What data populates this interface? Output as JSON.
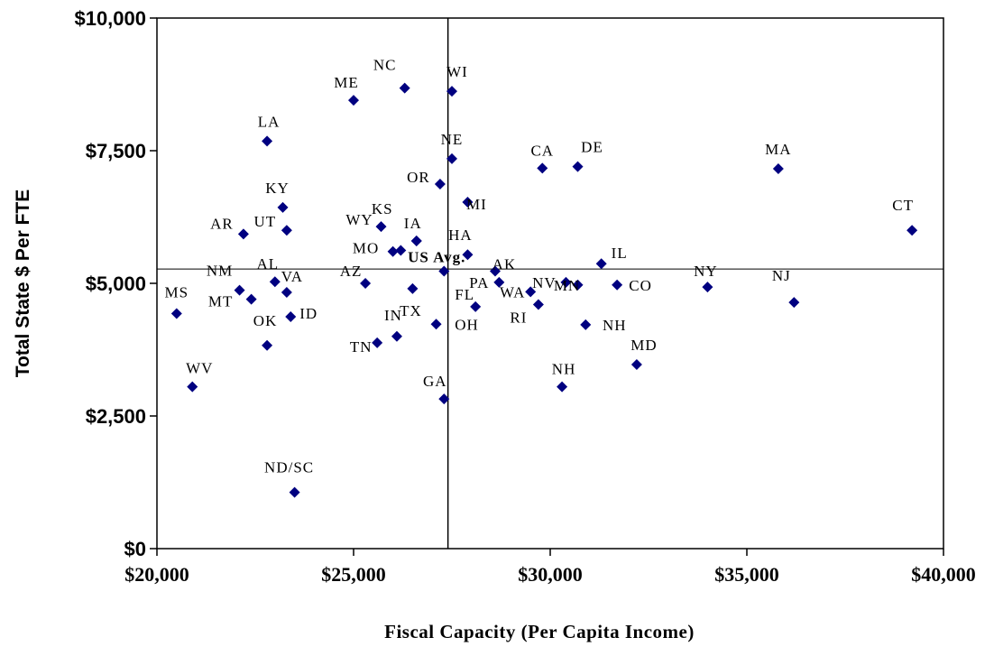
{
  "chart_data": {
    "type": "scatter",
    "xlabel": "Fiscal Capacity (Per Capita Income)",
    "ylabel": "Total State $ Per FTE",
    "xlim": [
      20000,
      40000
    ],
    "ylim": [
      0,
      10000
    ],
    "x_ticks": [
      20000,
      25000,
      30000,
      35000,
      40000
    ],
    "y_ticks": [
      0,
      2500,
      5000,
      7500,
      10000
    ],
    "x_tick_labels": [
      "$20,000",
      "$25,000",
      "$30,000",
      "$35,000",
      "$40,000"
    ],
    "y_tick_labels": [
      "$0",
      "$2,500",
      "$5,000",
      "$7,500",
      "$10,000"
    ],
    "reference_lines": {
      "x": 27400,
      "y": 5270
    },
    "marker_color": "#000080",
    "points": [
      {
        "label": "MS",
        "x": 20500,
        "y": 4430
      },
      {
        "label": "WV",
        "x": 20900,
        "y": 3050
      },
      {
        "label": "NM",
        "x": 22100,
        "y": 4870
      },
      {
        "label": "MT",
        "x": 22400,
        "y": 4700
      },
      {
        "label": "AR",
        "x": 22200,
        "y": 5930
      },
      {
        "label": "LA",
        "x": 22800,
        "y": 7680
      },
      {
        "label": "KY",
        "x": 23200,
        "y": 6430
      },
      {
        "label": "UT",
        "x": 23300,
        "y": 6000
      },
      {
        "label": "AL",
        "x": 23000,
        "y": 5030
      },
      {
        "label": "VA",
        "x": 23300,
        "y": 4830
      },
      {
        "label": "OK",
        "x": 22800,
        "y": 3830
      },
      {
        "label": "ID",
        "x": 23400,
        "y": 4370
      },
      {
        "label": "ND/SC",
        "x": 23500,
        "y": 1060
      },
      {
        "label": "ME",
        "x": 25000,
        "y": 8450
      },
      {
        "label": "AZ",
        "x": 25300,
        "y": 5000
      },
      {
        "label": "WY",
        "x": 25700,
        "y": 6070
      },
      {
        "label": "MO",
        "x": 26000,
        "y": 5600
      },
      {
        "label": "",
        "x": 26200,
        "y": 5620
      },
      {
        "label": "KS",
        "x": 26600,
        "y": 5800
      },
      {
        "label": "IA",
        "x": 26600,
        "y": 5800
      },
      {
        "label": "TN",
        "x": 25600,
        "y": 3880
      },
      {
        "label": "IN",
        "x": 26100,
        "y": 4000
      },
      {
        "label": "TX",
        "x": 26500,
        "y": 4900
      },
      {
        "label": "NC",
        "x": 26300,
        "y": 8680
      },
      {
        "label": "WI",
        "x": 27500,
        "y": 8620
      },
      {
        "label": "NE",
        "x": 27500,
        "y": 7350
      },
      {
        "label": "OR",
        "x": 27200,
        "y": 6870
      },
      {
        "label": "US Avg.",
        "x": 27300,
        "y": 5230
      },
      {
        "label": "OH",
        "x": 27100,
        "y": 4230
      },
      {
        "label": "GA",
        "x": 27300,
        "y": 2820
      },
      {
        "label": "MI",
        "x": 27900,
        "y": 6530
      },
      {
        "label": "HA",
        "x": 27900,
        "y": 5540
      },
      {
        "label": "AK",
        "x": 28600,
        "y": 5230
      },
      {
        "label": "PA",
        "x": 28700,
        "y": 5020
      },
      {
        "label": "FL",
        "x": 28100,
        "y": 4560
      },
      {
        "label": "WA",
        "x": 29500,
        "y": 4840
      },
      {
        "label": "NV",
        "x": 30400,
        "y": 5020
      },
      {
        "label": "RI",
        "x": 29700,
        "y": 4600
      },
      {
        "label": "MN",
        "x": 30700,
        "y": 4970
      },
      {
        "label": "CA",
        "x": 29800,
        "y": 7170
      },
      {
        "label": "DE",
        "x": 30700,
        "y": 7200
      },
      {
        "label": "IL",
        "x": 31300,
        "y": 5370
      },
      {
        "label": "CO",
        "x": 31700,
        "y": 4970
      },
      {
        "label": "NH",
        "x": 30900,
        "y": 4220
      },
      {
        "label": "NH",
        "x": 30300,
        "y": 3050
      },
      {
        "label": "MD",
        "x": 32200,
        "y": 3470
      },
      {
        "label": "NY",
        "x": 34000,
        "y": 4930
      },
      {
        "label": "MA",
        "x": 35800,
        "y": 7160
      },
      {
        "label": "NJ",
        "x": 36200,
        "y": 4640
      },
      {
        "label": "CT",
        "x": 39200,
        "y": 6000
      }
    ]
  }
}
